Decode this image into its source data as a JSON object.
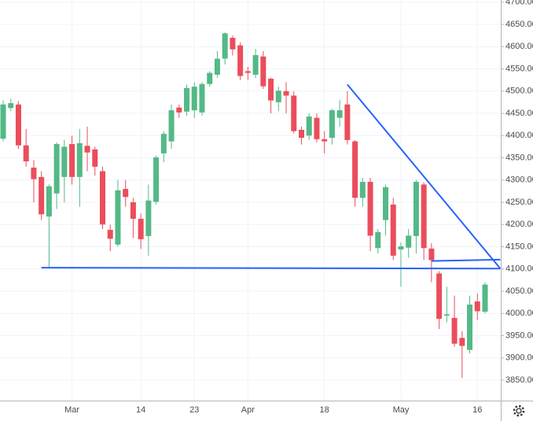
{
  "chart_data": {
    "type": "candlestick",
    "categories": [
      null,
      null,
      null,
      null,
      null,
      null,
      null,
      null,
      null,
      "Mar",
      null,
      null,
      null,
      null,
      null,
      null,
      null,
      null,
      "14",
      null,
      null,
      null,
      null,
      null,
      null,
      "23",
      null,
      null,
      null,
      null,
      null,
      null,
      "Apr",
      null,
      null,
      null,
      null,
      null,
      null,
      null,
      null,
      null,
      "18",
      null,
      null,
      null,
      null,
      null,
      null,
      null,
      null,
      null,
      "May",
      null,
      null,
      null,
      null,
      null,
      null,
      null,
      null,
      null,
      "16",
      null
    ],
    "open": [
      4393,
      4462,
      4470,
      4378,
      4328,
      4307,
      4218,
      4270,
      4307,
      4381,
      4307,
      4377,
      4369,
      4320,
      4188,
      4155,
      4280,
      4250,
      4213,
      4174,
      4251,
      4360,
      4387,
      4463,
      4454,
      4457,
      4452,
      4516,
      4537,
      4573,
      4620,
      4603,
      4545,
      4537,
      4578,
      4528,
      4475,
      4500,
      4490,
      4413,
      4400,
      4440,
      4392,
      4395,
      4440,
      4470,
      4387,
      4260,
      4296,
      4147,
      4210,
      4245,
      4144,
      4148,
      4174,
      4290,
      4146,
      4090,
      3995,
      3990,
      3945,
      3918,
      4027,
      4004
    ],
    "high": [
      4479,
      4483,
      4478,
      4415,
      4345,
      4320,
      4290,
      4385,
      4390,
      4400,
      4415,
      4420,
      4375,
      4330,
      4200,
      4300,
      4300,
      4260,
      4225,
      4290,
      4355,
      4410,
      4470,
      4470,
      4515,
      4520,
      4520,
      4545,
      4590,
      4632,
      4625,
      4610,
      4555,
      4595,
      4590,
      4530,
      4510,
      4520,
      4500,
      4420,
      4450,
      4450,
      4410,
      4460,
      4480,
      4500,
      4390,
      4305,
      4305,
      4190,
      4290,
      4260,
      4160,
      4190,
      4300,
      4295,
      4158,
      4095,
      4060,
      4040,
      3960,
      4040,
      4045,
      4070
    ],
    "low": [
      4387,
      4455,
      4370,
      4330,
      4250,
      4210,
      4102,
      4235,
      4250,
      4290,
      4240,
      4320,
      4310,
      4190,
      4140,
      4150,
      4240,
      4170,
      4145,
      4130,
      4245,
      4340,
      4370,
      4440,
      4445,
      4440,
      4445,
      4510,
      4530,
      4560,
      4580,
      4525,
      4525,
      4530,
      4505,
      4450,
      4455,
      4450,
      4405,
      4380,
      4390,
      4385,
      4360,
      4380,
      4420,
      4380,
      4240,
      4240,
      4140,
      4135,
      4175,
      4120,
      4060,
      4125,
      4135,
      4120,
      4070,
      3965,
      3980,
      3925,
      3855,
      3910,
      3985,
      4000
    ],
    "close": [
      4470,
      4473,
      4378,
      4342,
      4302,
      4223,
      4286,
      4381,
      4375,
      4307,
      4383,
      4362,
      4330,
      4200,
      4168,
      4277,
      4262,
      4213,
      4167,
      4254,
      4351,
      4404,
      4457,
      4452,
      4507,
      4510,
      4516,
      4541,
      4573,
      4630,
      4594,
      4534,
      4541,
      4581,
      4511,
      4479,
      4501,
      4490,
      4410,
      4395,
      4443,
      4392,
      4387,
      4457,
      4457,
      4390,
      4260,
      4296,
      4175,
      4183,
      4284,
      4130,
      4151,
      4175,
      4296,
      4147,
      4120,
      3988,
      3998,
      3932,
      3927,
      4020,
      4005,
      4065
    ],
    "up_color": "#53b987",
    "down_color": "#eb4d5c",
    "ylim": [
      3804,
      4705
    ],
    "yticks": [
      {
        "value": 3850,
        "label": "3850.00"
      },
      {
        "value": 3900,
        "label": "3900.00"
      },
      {
        "value": 3950,
        "label": "3950.00"
      },
      {
        "value": 4000,
        "label": "4000.00"
      },
      {
        "value": 4050,
        "label": "4050.00"
      },
      {
        "value": 4100,
        "label": "4100.00"
      },
      {
        "value": 4150,
        "label": "4150.00"
      },
      {
        "value": 4200,
        "label": "4200.00"
      },
      {
        "value": 4250,
        "label": "4250.00"
      },
      {
        "value": 4300,
        "label": "4300.00"
      },
      {
        "value": 4350,
        "label": "4350.00"
      },
      {
        "value": 4400,
        "label": "4400.00"
      },
      {
        "value": 4450,
        "label": "4450.00"
      },
      {
        "value": 4500,
        "label": "4500.00"
      },
      {
        "value": 4550,
        "label": "4550.00"
      },
      {
        "value": 4600,
        "label": "4600.00"
      },
      {
        "value": 4650,
        "label": "4650.00"
      },
      {
        "value": 4700,
        "label": "4700.00"
      }
    ],
    "grid": true,
    "trendlines": [
      {
        "color": "#2962ff",
        "from": [
          5,
          4103
        ],
        "to": [
          65,
          4101
        ]
      },
      {
        "color": "#2962ff",
        "from": [
          45,
          4515
        ],
        "to": [
          65,
          4101
        ]
      },
      {
        "color": "#2962ff",
        "from": [
          56,
          4118
        ],
        "to": [
          65,
          4121
        ]
      }
    ]
  }
}
